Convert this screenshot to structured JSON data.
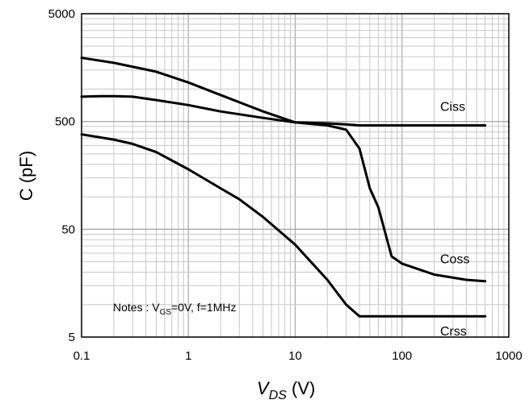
{
  "chart_data": {
    "type": "line",
    "x_scale": "log",
    "y_scale": "log",
    "xlim": [
      0.1,
      1000
    ],
    "ylim": [
      5,
      5000
    ],
    "grid": true,
    "x_ticks": [
      "0.1",
      "1",
      "10",
      "100",
      "1000"
    ],
    "y_ticks": [
      "5000",
      "500",
      "50",
      "5"
    ],
    "xlabel_main": "V",
    "xlabel_sub": "DS",
    "xlabel_unit": " (V)",
    "ylabel": "C (pF)",
    "note": {
      "prefix": "Notes : V",
      "sub": "GS",
      "suffix": "=0V, f=1MHz"
    },
    "series": [
      {
        "name": "Ciss",
        "x": [
          0.1,
          0.2,
          0.5,
          1,
          2,
          5,
          10,
          20,
          30,
          40,
          60,
          100,
          200,
          600
        ],
        "y": [
          1950,
          1750,
          1450,
          1150,
          880,
          620,
          490,
          480,
          470,
          460,
          460,
          460,
          460,
          460
        ]
      },
      {
        "name": "Coss",
        "x": [
          0.1,
          0.15,
          0.2,
          0.3,
          0.5,
          1,
          2,
          5,
          10,
          20,
          30,
          40,
          50,
          60,
          80,
          100,
          200,
          400,
          600
        ],
        "y": [
          850,
          860,
          860,
          850,
          790,
          710,
          620,
          540,
          490,
          460,
          420,
          280,
          120,
          80,
          28,
          24,
          19,
          17,
          16.5
        ]
      },
      {
        "name": "Crss",
        "x": [
          0.1,
          0.2,
          0.3,
          0.5,
          1,
          2,
          3,
          5,
          10,
          20,
          30,
          40,
          600
        ],
        "y": [
          380,
          340,
          310,
          260,
          180,
          120,
          95,
          65,
          36,
          17,
          10,
          7.8,
          7.8
        ]
      }
    ]
  }
}
